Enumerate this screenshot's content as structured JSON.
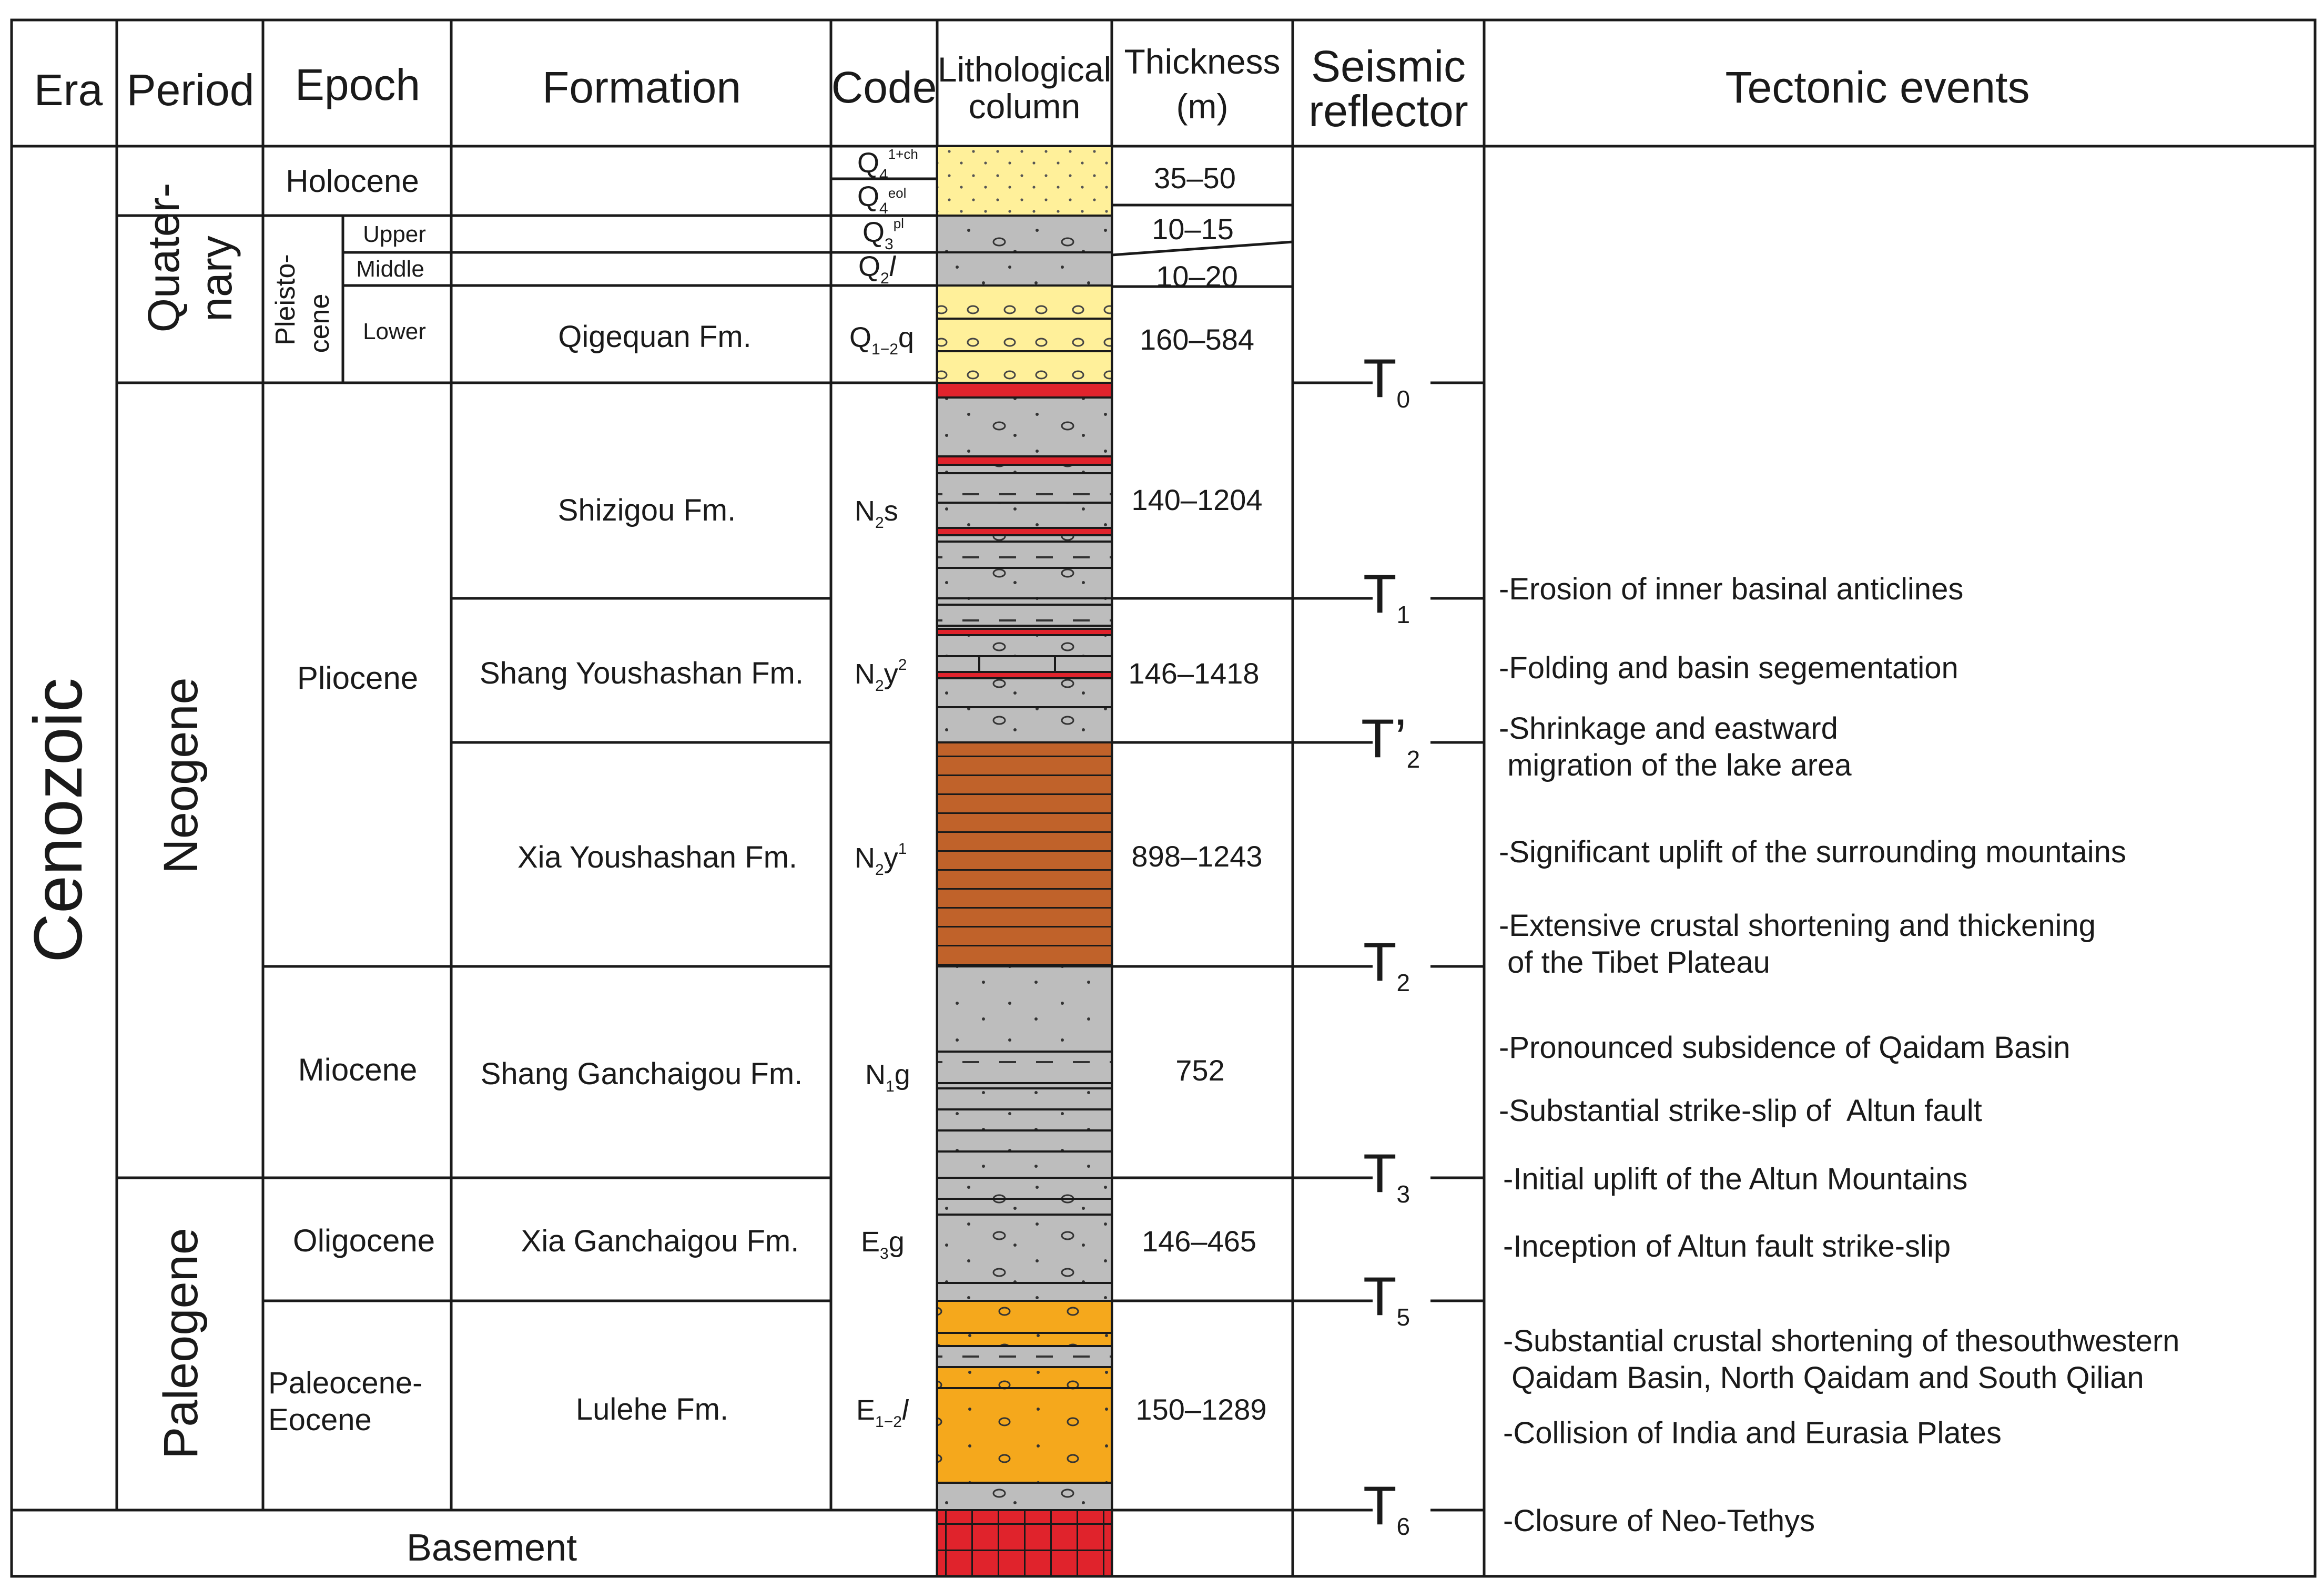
{
  "headers": {
    "era": "Era",
    "period": "Period",
    "epoch": "Epoch",
    "formation": "Formation",
    "code": "Code",
    "lithology": [
      "Lithological",
      "column"
    ],
    "thickness": [
      "Thickness",
      "(m)"
    ],
    "seismic": [
      "Seismic",
      "reflector"
    ],
    "tectonic": "Tectonic events"
  },
  "era": {
    "name": "Cenozoic",
    "basement": "Basement"
  },
  "periods": {
    "quaternary": [
      "Quater-",
      "nary"
    ],
    "neogene": "Neogene",
    "paleogene": "Paleogene"
  },
  "epochs": {
    "holocene": "Holocene",
    "pleistocene": [
      "Pleisto-",
      "cene"
    ],
    "upper": "Upper",
    "middle": "Middle",
    "lower": "Lower",
    "pliocene": "Pliocene",
    "miocene": "Miocene",
    "oligocene": "Oligocene",
    "paleo_eocene": [
      "Paleocene-",
      "Eocene"
    ]
  },
  "formations": {
    "qigequan": "Qigequan Fm.",
    "shizigou": "Shizigou Fm.",
    "shang_youshashan": "Shang Youshashan Fm.",
    "xia_youshashan": "Xia Youshashan Fm.",
    "shang_ganchaigou": "Shang Ganchaigou Fm.",
    "xia_ganchaigou": "Xia Ganchaigou Fm.",
    "lulehe": "Lulehe Fm."
  },
  "codes": {
    "q4a": {
      "main": "Q",
      "sub": "4",
      "sup": "1+ch"
    },
    "q4b": {
      "main": "Q",
      "sub": "4",
      "sup": "eol"
    },
    "q3": {
      "main": "Q",
      "sub": "3",
      "sup": "pl"
    },
    "q2": {
      "main": "Q",
      "sub": "2",
      "tail": "l"
    },
    "q12": {
      "main": "Q",
      "sub": "1−2",
      "tail": "q"
    },
    "n2s": {
      "main": "N",
      "sub": "2",
      "tail": "s"
    },
    "n2y2": {
      "main": "N",
      "sub": "2",
      "tail": "y",
      "sup": "2"
    },
    "n2y1": {
      "main": "N",
      "sub": "2",
      "tail": "y",
      "sup": "1"
    },
    "n1g": {
      "main": "N",
      "sub": "1",
      "tail": "g"
    },
    "e3g": {
      "main": "E",
      "sub": "3",
      "tail": "g"
    },
    "e12l": {
      "main": "E",
      "sub": "1−2",
      "tail": "l"
    }
  },
  "thickness": {
    "holocene": "35–50",
    "upper": "10–15",
    "middle": "10–20",
    "qigequan": "160–584",
    "shizigou": "140–1204",
    "shang_youshashan": "146–1418",
    "xia_youshashan": "898–1243",
    "shang_ganchaigou": "752",
    "xia_ganchaigou": "146–465",
    "lulehe": "150–1289"
  },
  "reflectors": {
    "t0": {
      "main": "T",
      "sub": "0"
    },
    "t1": {
      "main": "T",
      "sub": "1"
    },
    "t2p": {
      "main": "T’",
      "sub": "2"
    },
    "t2": {
      "main": "T",
      "sub": "2"
    },
    "t3": {
      "main": "T",
      "sub": "3"
    },
    "t5": {
      "main": "T",
      "sub": "5"
    },
    "t6": {
      "main": "T",
      "sub": "6"
    }
  },
  "events": {
    "e1": "-Erosion of inner basinal anticlines",
    "e2": "-Folding and basin segementation",
    "e3a": "-Shrinkage and eastward",
    "e3b": " migration of the lake area",
    "e4": "-Significant uplift of the surrounding mountains",
    "e5a": "-Extensive crustal shortening and thickening",
    "e5b": " of the Tibet Plateau",
    "e6": "-Pronounced subsidence of Qaidam Basin",
    "e7": "-Substantial strike-slip of  Altun fault",
    "e8": "-Initial uplift of the Altun Mountains",
    "e9": "-Inception of Altun fault strike-slip",
    "e10a": "-Substantial crustal shortening of thesouthwestern",
    "e10b": " Qaidam Basin, North Qaidam and South Qilian",
    "e11": "-Collision of India and Eurasia Plates",
    "e12": "-Closure of Neo-Tethys"
  },
  "colors": {
    "yellow": "#fff09a",
    "gray": "#bdbdbd",
    "brown": "#c0622a",
    "orange": "#f5a81c",
    "red": "#e0232c",
    "line": "#1a1a1a"
  }
}
